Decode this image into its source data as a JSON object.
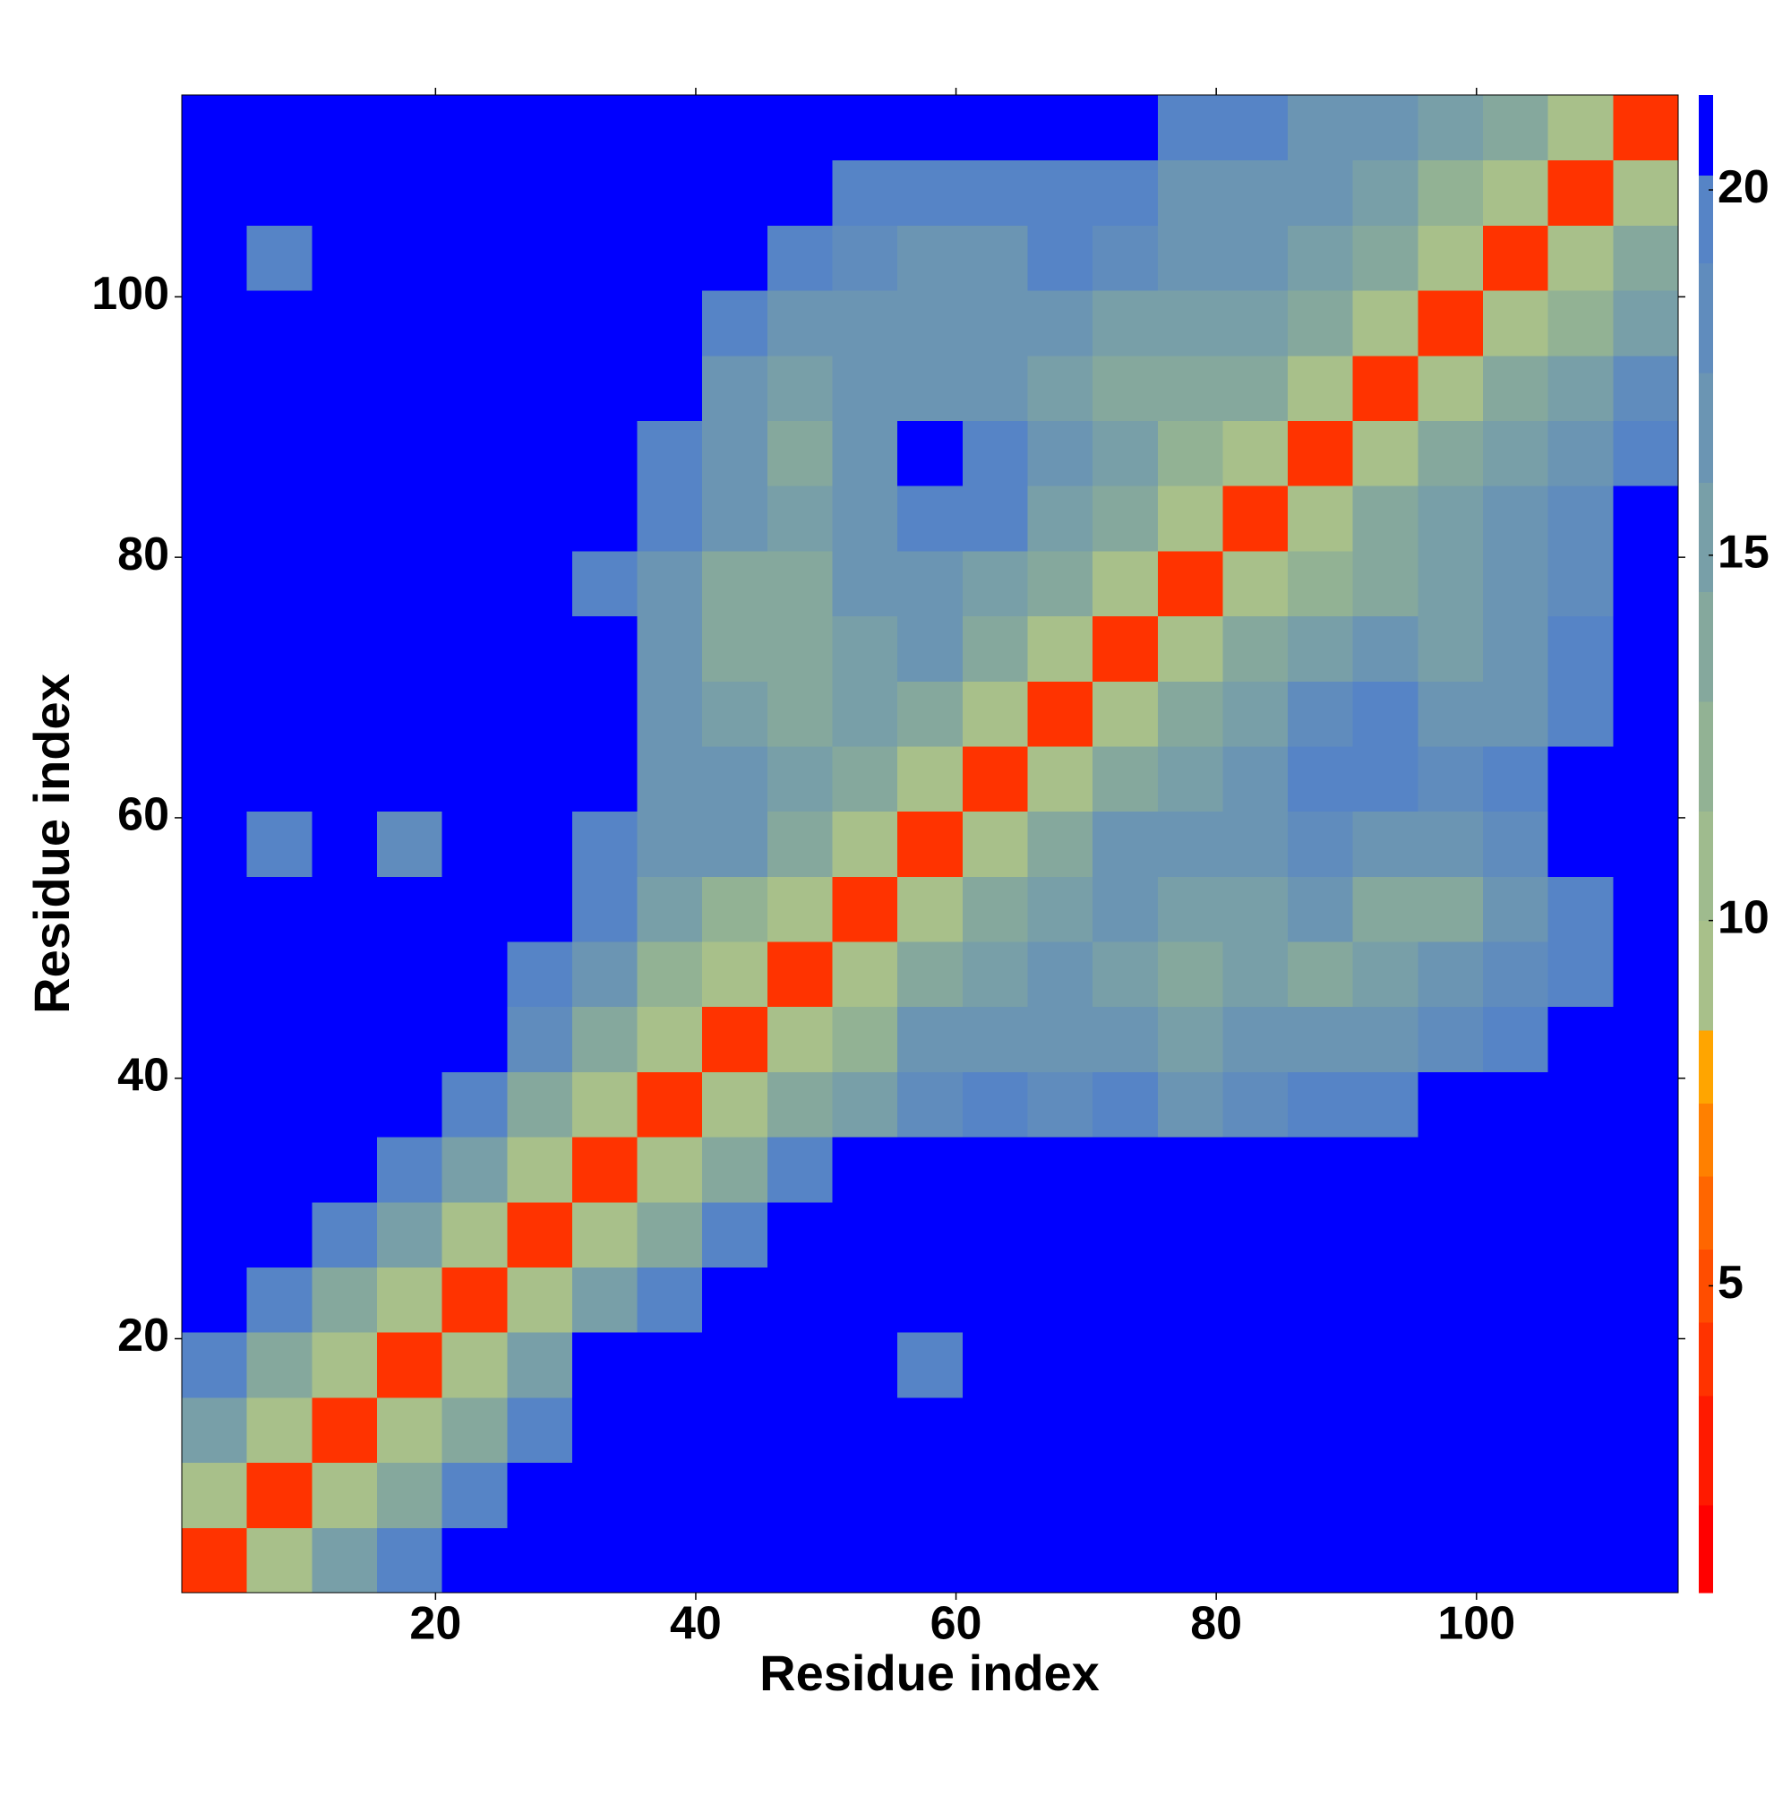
{
  "chart_data": {
    "type": "heatmap",
    "x_label": "Residue index",
    "y_label": "Residue index",
    "xbins": [
      0.5,
      5.5,
      10.5,
      15.5,
      20.5,
      25.5,
      30.5,
      35.5,
      40.5,
      45.5,
      50.5,
      55.5,
      60.5,
      65.5,
      70.5,
      75.5,
      80.5,
      85.5,
      90.5,
      95.5,
      100.5,
      105.5,
      110.5,
      115.5
    ],
    "ybins": [
      0.5,
      5.5,
      10.5,
      15.5,
      20.5,
      25.5,
      30.5,
      35.5,
      40.5,
      45.5,
      50.5,
      55.5,
      60.5,
      65.5,
      70.5,
      75.5,
      80.5,
      85.5,
      90.5,
      95.5,
      100.5,
      105.5,
      110.5,
      115.5
    ],
    "xlim": [
      0.5,
      115.5
    ],
    "ylim": [
      0.5,
      115.5
    ],
    "xticks": [
      20,
      40,
      60,
      80,
      100
    ],
    "yticks": [
      20,
      40,
      60,
      80,
      100
    ],
    "values": [
      [
        4,
        9,
        15,
        19,
        21,
        21,
        21,
        21,
        21,
        21,
        21,
        21,
        21,
        21,
        21,
        21,
        21,
        21,
        21,
        21,
        21,
        21,
        21
      ],
      [
        9,
        4,
        9,
        14,
        19,
        21,
        21,
        21,
        21,
        21,
        21,
        21,
        21,
        21,
        21,
        21,
        21,
        21,
        21,
        21,
        21,
        21,
        21
      ],
      [
        15,
        9,
        4,
        9,
        14,
        19,
        21,
        21,
        21,
        21,
        21,
        21,
        21,
        21,
        21,
        21,
        21,
        21,
        21,
        21,
        21,
        21,
        21
      ],
      [
        19,
        14,
        9,
        4,
        9,
        15,
        21,
        21,
        21,
        21,
        21,
        19,
        21,
        21,
        21,
        21,
        21,
        21,
        21,
        21,
        21,
        21,
        21
      ],
      [
        21,
        19,
        14,
        9,
        4,
        9,
        15,
        20,
        21,
        21,
        21,
        21,
        21,
        21,
        21,
        21,
        21,
        21,
        21,
        21,
        21,
        21,
        21
      ],
      [
        21,
        21,
        19,
        15,
        9,
        4,
        9,
        14,
        19,
        21,
        21,
        21,
        21,
        21,
        21,
        21,
        21,
        21,
        21,
        21,
        21,
        21,
        21
      ],
      [
        21,
        21,
        21,
        20,
        15,
        9,
        4,
        9,
        14,
        19,
        21,
        21,
        21,
        21,
        21,
        21,
        21,
        21,
        21,
        21,
        21,
        21,
        21
      ],
      [
        21,
        21,
        21,
        21,
        20,
        14,
        9,
        4,
        9,
        13,
        15,
        18,
        19,
        18,
        19,
        17,
        18,
        19,
        20,
        21,
        21,
        21,
        21
      ],
      [
        21,
        21,
        21,
        21,
        21,
        18,
        14,
        9,
        4,
        9,
        12,
        16,
        17,
        16,
        16,
        15,
        16,
        17,
        17,
        18,
        19,
        21,
        21
      ],
      [
        21,
        21,
        21,
        21,
        21,
        20,
        16,
        12,
        9,
        4,
        9,
        13,
        15,
        16,
        15,
        14,
        15,
        14,
        15,
        16,
        18,
        20,
        21
      ],
      [
        21,
        21,
        21,
        21,
        21,
        21,
        19,
        15,
        12,
        9,
        4,
        9,
        13,
        15,
        16,
        15,
        15,
        16,
        13,
        14,
        16,
        19,
        21
      ],
      [
        21,
        20,
        21,
        18,
        21,
        21,
        20,
        16,
        16,
        13,
        9,
        4,
        9,
        13,
        16,
        17,
        17,
        18,
        17,
        16,
        18,
        21,
        21
      ],
      [
        21,
        21,
        21,
        21,
        21,
        21,
        21,
        17,
        16,
        15,
        13,
        9,
        4,
        9,
        13,
        15,
        17,
        19,
        20,
        18,
        19,
        21,
        21
      ],
      [
        21,
        21,
        21,
        21,
        21,
        21,
        21,
        17,
        15,
        14,
        15,
        13,
        9,
        4,
        9,
        13,
        15,
        18,
        20,
        17,
        17,
        20,
        21
      ],
      [
        21,
        21,
        21,
        21,
        21,
        21,
        21,
        16,
        14,
        13,
        15,
        16,
        13,
        9,
        4,
        9,
        13,
        15,
        16,
        15,
        16,
        19,
        21
      ],
      [
        21,
        21,
        21,
        21,
        21,
        21,
        20,
        16,
        14,
        13,
        16,
        17,
        15,
        13,
        9,
        4,
        9,
        12,
        14,
        15,
        16,
        18,
        21
      ],
      [
        21,
        21,
        21,
        21,
        21,
        21,
        21,
        19,
        16,
        15,
        17,
        20,
        20,
        15,
        13,
        9,
        4,
        9,
        13,
        15,
        16,
        18,
        21
      ],
      [
        21,
        21,
        21,
        21,
        21,
        21,
        21,
        20,
        16,
        14,
        17,
        21,
        20,
        16,
        15,
        12,
        9,
        4,
        9,
        13,
        15,
        17,
        20
      ],
      [
        21,
        21,
        21,
        21,
        21,
        21,
        21,
        21,
        17,
        15,
        16,
        17,
        17,
        15,
        14,
        14,
        13,
        9,
        4,
        9,
        13,
        15,
        18
      ],
      [
        21,
        21,
        21,
        21,
        21,
        21,
        21,
        21,
        19,
        17,
        16,
        16,
        17,
        16,
        15,
        15,
        15,
        13,
        9,
        4,
        9,
        12,
        15
      ],
      [
        21,
        19,
        21,
        21,
        21,
        21,
        21,
        21,
        21,
        20,
        18,
        17,
        17,
        19,
        18,
        16,
        16,
        15,
        13,
        9,
        4,
        9,
        13
      ],
      [
        21,
        21,
        21,
        21,
        21,
        21,
        21,
        21,
        21,
        21,
        20,
        19,
        19,
        20,
        19,
        17,
        17,
        16,
        15,
        12,
        9,
        4,
        9
      ],
      [
        21,
        21,
        21,
        21,
        21,
        21,
        21,
        21,
        21,
        21,
        21,
        21,
        21,
        21,
        21,
        20,
        19,
        17,
        17,
        15,
        13,
        9,
        4
      ]
    ],
    "colorbar": {
      "lim": [
        0.8,
        21.3
      ],
      "ticks": [
        5,
        10,
        15,
        20
      ],
      "levels": [
        0.8,
        2,
        3.5,
        4.5,
        5.5,
        6.5,
        7.5,
        8.5,
        10,
        11.5,
        13,
        14.5,
        16,
        17.5,
        19,
        20.2,
        21.3
      ],
      "colors": [
        "#ff0000",
        "#ff1a00",
        "#ff3300",
        "#ff4d00",
        "#ff6600",
        "#ff8000",
        "#ffa500",
        "#a8c08a",
        "#9fbb8e",
        "#92b294",
        "#85a89d",
        "#789fa8",
        "#6b95b3",
        "#608cbd",
        "#5684c6",
        "#0000ff"
      ]
    }
  }
}
